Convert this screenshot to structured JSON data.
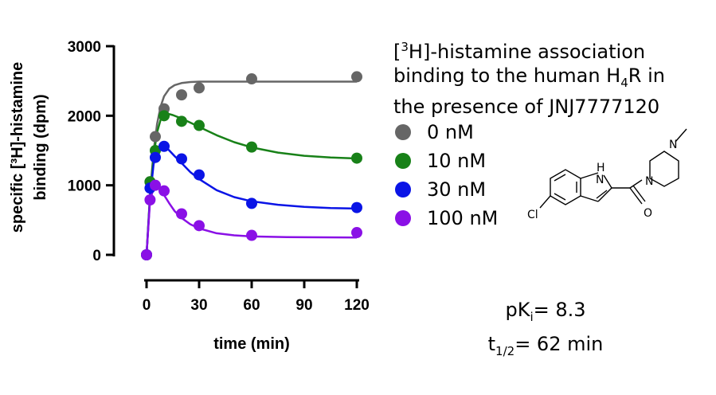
{
  "chart_data": {
    "type": "scatter",
    "title": "",
    "xlabel": "time (min)",
    "ylabel_line1": "specific [³H]-histamine",
    "ylabel_line2": "binding (dpm)",
    "xlim": [
      0,
      120
    ],
    "ylim": [
      0,
      3000
    ],
    "x_ticks": [
      0,
      30,
      60,
      90,
      120
    ],
    "y_ticks": [
      0,
      1000,
      2000,
      3000
    ],
    "x_tick_labels": [
      "0",
      "30",
      "60",
      "90",
      "120"
    ],
    "y_tick_labels": [
      "0",
      "1000",
      "2000",
      "3000"
    ],
    "grid": false,
    "legend_position": "right",
    "series": [
      {
        "name": "0 nM",
        "color": "#666666",
        "points": [
          [
            0,
            0
          ],
          [
            2,
            1050
          ],
          [
            5,
            1700
          ],
          [
            10,
            2100
          ],
          [
            20,
            2300
          ],
          [
            30,
            2400
          ],
          [
            60,
            2530
          ],
          [
            120,
            2560
          ]
        ],
        "curve": [
          [
            0,
            0
          ],
          [
            2,
            880
          ],
          [
            4,
            1480
          ],
          [
            6,
            1880
          ],
          [
            8,
            2130
          ],
          [
            10,
            2280
          ],
          [
            13,
            2390
          ],
          [
            16,
            2440
          ],
          [
            20,
            2470
          ],
          [
            25,
            2485
          ],
          [
            30,
            2490
          ],
          [
            45,
            2490
          ],
          [
            60,
            2490
          ],
          [
            90,
            2490
          ],
          [
            120,
            2490
          ]
        ]
      },
      {
        "name": "10 nM",
        "color": "#188118",
        "points": [
          [
            0,
            0
          ],
          [
            2,
            1050
          ],
          [
            5,
            1500
          ],
          [
            10,
            2000
          ],
          [
            20,
            1920
          ],
          [
            30,
            1860
          ],
          [
            60,
            1550
          ],
          [
            120,
            1390
          ]
        ],
        "curve": [
          [
            0,
            0
          ],
          [
            2,
            850
          ],
          [
            4,
            1420
          ],
          [
            6,
            1760
          ],
          [
            8,
            1940
          ],
          [
            10,
            2010
          ],
          [
            12,
            2030
          ],
          [
            15,
            2010
          ],
          [
            20,
            1960
          ],
          [
            30,
            1840
          ],
          [
            40,
            1720
          ],
          [
            50,
            1620
          ],
          [
            60,
            1545
          ],
          [
            75,
            1470
          ],
          [
            90,
            1425
          ],
          [
            105,
            1400
          ],
          [
            120,
            1385
          ]
        ]
      },
      {
        "name": "30 nM",
        "color": "#0a14e6",
        "points": [
          [
            0,
            0
          ],
          [
            2,
            960
          ],
          [
            5,
            1400
          ],
          [
            10,
            1560
          ],
          [
            20,
            1380
          ],
          [
            30,
            1150
          ],
          [
            60,
            740
          ],
          [
            120,
            680
          ]
        ],
        "curve": [
          [
            0,
            0
          ],
          [
            2,
            820
          ],
          [
            4,
            1300
          ],
          [
            6,
            1510
          ],
          [
            8,
            1580
          ],
          [
            10,
            1575
          ],
          [
            13,
            1500
          ],
          [
            16,
            1420
          ],
          [
            20,
            1320
          ],
          [
            25,
            1190
          ],
          [
            30,
            1090
          ],
          [
            40,
            930
          ],
          [
            50,
            830
          ],
          [
            60,
            770
          ],
          [
            75,
            720
          ],
          [
            90,
            690
          ],
          [
            105,
            672
          ],
          [
            120,
            665
          ]
        ]
      },
      {
        "name": "100 nM",
        "color": "#8a10e6",
        "points": [
          [
            0,
            0
          ],
          [
            2,
            790
          ],
          [
            5,
            1000
          ],
          [
            10,
            920
          ],
          [
            20,
            590
          ],
          [
            30,
            420
          ],
          [
            60,
            280
          ],
          [
            120,
            320
          ]
        ],
        "curve": [
          [
            0,
            0
          ],
          [
            2,
            780
          ],
          [
            4,
            960
          ],
          [
            6,
            990
          ],
          [
            8,
            940
          ],
          [
            10,
            860
          ],
          [
            13,
            740
          ],
          [
            16,
            630
          ],
          [
            20,
            530
          ],
          [
            25,
            440
          ],
          [
            30,
            380
          ],
          [
            40,
            310
          ],
          [
            50,
            280
          ],
          [
            60,
            265
          ],
          [
            80,
            255
          ],
          [
            100,
            252
          ],
          [
            120,
            250
          ]
        ]
      }
    ]
  },
  "legend_title": {
    "line1_prefix": "[",
    "line1_sup": "3",
    "line1_rest": "H]-histamine association",
    "line2_prefix": "binding to the human H",
    "line2_sub": "4",
    "line2_rest": "R in",
    "line3": "the presence of JNJ7777120"
  },
  "stats": {
    "pki_prefix": "pK",
    "pki_sub": "i",
    "pki_rest": "= 8.3",
    "t_prefix": "t",
    "t_sub": "1/2",
    "t_rest": "= 62 min"
  },
  "molecule": {
    "atom_nh": "H\nN",
    "atom_n_h": "H",
    "atom_n": "N",
    "atom_n2": "N",
    "atom_n3": "N",
    "atom_o": "O",
    "atom_cl": "Cl"
  }
}
